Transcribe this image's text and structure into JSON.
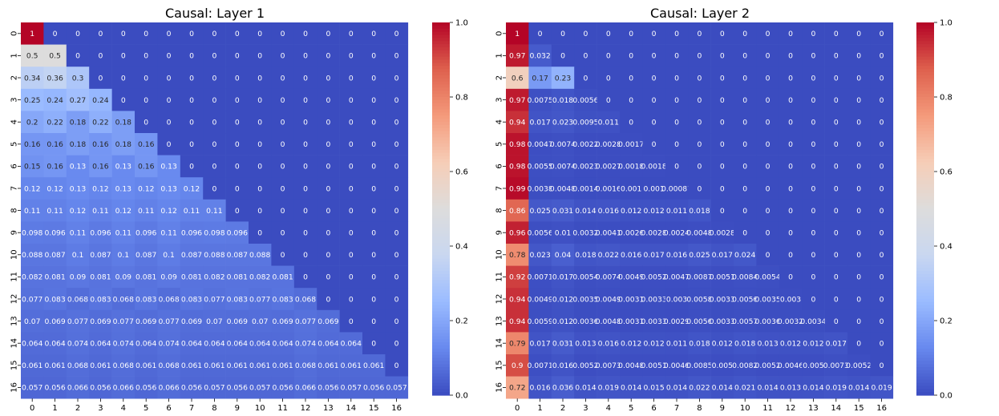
{
  "figure": {
    "colormap": "coolwarm",
    "colormap_stops": [
      "#3b4cc0",
      "#6788ee",
      "#9abbff",
      "#c9d7f0",
      "#dddcdc",
      "#f6cdb7",
      "#f49a7b",
      "#de604d",
      "#b40426"
    ],
    "colorbar_ticks": [
      "0.0",
      "0.2",
      "0.4",
      "0.6",
      "0.8",
      "1.0"
    ]
  },
  "chart_data": [
    {
      "type": "heatmap",
      "title": "Causal: Layer 1",
      "xlabel": "",
      "ylabel": "",
      "x_tick_labels": [
        "0",
        "1",
        "2",
        "3",
        "4",
        "5",
        "6",
        "7",
        "8",
        "9",
        "10",
        "11",
        "12",
        "13",
        "14",
        "15",
        "16"
      ],
      "y_tick_labels": [
        "0",
        "1",
        "2",
        "3",
        "4",
        "5",
        "6",
        "7",
        "8",
        "9",
        "10",
        "11",
        "12",
        "13",
        "14",
        "15",
        "16"
      ],
      "vmin": 0.0,
      "vmax": 1.0,
      "cells": [
        [
          "1",
          "0",
          "0",
          "0",
          "0",
          "0",
          "0",
          "0",
          "0",
          "0",
          "0",
          "0",
          "0",
          "0",
          "0",
          "0",
          "0"
        ],
        [
          "0.5",
          "0.5",
          "0",
          "0",
          "0",
          "0",
          "0",
          "0",
          "0",
          "0",
          "0",
          "0",
          "0",
          "0",
          "0",
          "0",
          "0"
        ],
        [
          "0.34",
          "0.36",
          "0.3",
          "0",
          "0",
          "0",
          "0",
          "0",
          "0",
          "0",
          "0",
          "0",
          "0",
          "0",
          "0",
          "0",
          "0"
        ],
        [
          "0.25",
          "0.24",
          "0.27",
          "0.24",
          "0",
          "0",
          "0",
          "0",
          "0",
          "0",
          "0",
          "0",
          "0",
          "0",
          "0",
          "0",
          "0"
        ],
        [
          "0.2",
          "0.22",
          "0.18",
          "0.22",
          "0.18",
          "0",
          "0",
          "0",
          "0",
          "0",
          "0",
          "0",
          "0",
          "0",
          "0",
          "0",
          "0"
        ],
        [
          "0.16",
          "0.16",
          "0.18",
          "0.16",
          "0.18",
          "0.16",
          "0",
          "0",
          "0",
          "0",
          "0",
          "0",
          "0",
          "0",
          "0",
          "0",
          "0"
        ],
        [
          "0.15",
          "0.16",
          "0.13",
          "0.16",
          "0.13",
          "0.16",
          "0.13",
          "0",
          "0",
          "0",
          "0",
          "0",
          "0",
          "0",
          "0",
          "0",
          "0"
        ],
        [
          "0.12",
          "0.12",
          "0.13",
          "0.12",
          "0.13",
          "0.12",
          "0.13",
          "0.12",
          "0",
          "0",
          "0",
          "0",
          "0",
          "0",
          "0",
          "0",
          "0"
        ],
        [
          "0.11",
          "0.11",
          "0.12",
          "0.11",
          "0.12",
          "0.11",
          "0.12",
          "0.11",
          "0.11",
          "0",
          "0",
          "0",
          "0",
          "0",
          "0",
          "0",
          "0"
        ],
        [
          "0.098",
          "0.096",
          "0.11",
          "0.096",
          "0.11",
          "0.096",
          "0.11",
          "0.096",
          "0.098",
          "0.096",
          "0",
          "0",
          "0",
          "0",
          "0",
          "0",
          "0"
        ],
        [
          "0.088",
          "0.087",
          "0.1",
          "0.087",
          "0.1",
          "0.087",
          "0.1",
          "0.087",
          "0.088",
          "0.087",
          "0.088",
          "0",
          "0",
          "0",
          "0",
          "0",
          "0"
        ],
        [
          "0.082",
          "0.081",
          "0.09",
          "0.081",
          "0.09",
          "0.081",
          "0.09",
          "0.081",
          "0.082",
          "0.081",
          "0.082",
          "0.081",
          "0",
          "0",
          "0",
          "0",
          "0"
        ],
        [
          "0.077",
          "0.083",
          "0.068",
          "0.083",
          "0.068",
          "0.083",
          "0.068",
          "0.083",
          "0.077",
          "0.083",
          "0.077",
          "0.083",
          "0.068",
          "0",
          "0",
          "0",
          "0"
        ],
        [
          "0.07",
          "0.069",
          "0.077",
          "0.069",
          "0.077",
          "0.069",
          "0.077",
          "0.069",
          "0.07",
          "0.069",
          "0.07",
          "0.069",
          "0.077",
          "0.069",
          "0",
          "0",
          "0"
        ],
        [
          "0.064",
          "0.064",
          "0.074",
          "0.064",
          "0.074",
          "0.064",
          "0.074",
          "0.064",
          "0.064",
          "0.064",
          "0.064",
          "0.064",
          "0.074",
          "0.064",
          "0.064",
          "0",
          "0"
        ],
        [
          "0.061",
          "0.061",
          "0.068",
          "0.061",
          "0.068",
          "0.061",
          "0.068",
          "0.061",
          "0.061",
          "0.061",
          "0.061",
          "0.061",
          "0.068",
          "0.061",
          "0.061",
          "0.061",
          "0"
        ],
        [
          "0.057",
          "0.056",
          "0.066",
          "0.056",
          "0.066",
          "0.056",
          "0.066",
          "0.056",
          "0.057",
          "0.056",
          "0.057",
          "0.056",
          "0.066",
          "0.056",
          "0.057",
          "0.056",
          "0.057"
        ]
      ]
    },
    {
      "type": "heatmap",
      "title": "Causal: Layer 2",
      "xlabel": "",
      "ylabel": "",
      "x_tick_labels": [
        "0",
        "1",
        "2",
        "3",
        "4",
        "5",
        "6",
        "7",
        "8",
        "9",
        "10",
        "11",
        "12",
        "13",
        "14",
        "15",
        "16"
      ],
      "y_tick_labels": [
        "0",
        "1",
        "2",
        "3",
        "4",
        "5",
        "6",
        "7",
        "8",
        "9",
        "10",
        "11",
        "12",
        "13",
        "14",
        "15",
        "16"
      ],
      "vmin": 0.0,
      "vmax": 1.0,
      "cells": [
        [
          "1",
          "0",
          "0",
          "0",
          "0",
          "0",
          "0",
          "0",
          "0",
          "0",
          "0",
          "0",
          "0",
          "0",
          "0",
          "0",
          "0"
        ],
        [
          "0.97",
          "0.032",
          "0",
          "0",
          "0",
          "0",
          "0",
          "0",
          "0",
          "0",
          "0",
          "0",
          "0",
          "0",
          "0",
          "0",
          "0"
        ],
        [
          "0.6",
          "0.17",
          "0.23",
          "0",
          "0",
          "0",
          "0",
          "0",
          "0",
          "0",
          "0",
          "0",
          "0",
          "0",
          "0",
          "0",
          "0"
        ],
        [
          "0.97",
          "0.0075",
          "0.018",
          "0.0056",
          "0",
          "0",
          "0",
          "0",
          "0",
          "0",
          "0",
          "0",
          "0",
          "0",
          "0",
          "0",
          "0"
        ],
        [
          "0.94",
          "0.017",
          "0.023",
          "0.0095",
          "0.011",
          "0",
          "0",
          "0",
          "0",
          "0",
          "0",
          "0",
          "0",
          "0",
          "0",
          "0",
          "0"
        ],
        [
          "0.98",
          "0.0047",
          "0.0074",
          "0.0022",
          "0.0028",
          "0.0017",
          "0",
          "0",
          "0",
          "0",
          "0",
          "0",
          "0",
          "0",
          "0",
          "0",
          "0"
        ],
        [
          "0.98",
          "0.0055",
          "0.0074",
          "0.0023",
          "0.0027",
          "0.0018",
          "0.0018",
          "0",
          "0",
          "0",
          "0",
          "0",
          "0",
          "0",
          "0",
          "0",
          "0"
        ],
        [
          "0.99",
          "0.0038",
          "0.0048",
          "0.0014",
          "0.0016",
          "0.001",
          "0.001",
          "0.00087",
          "0",
          "0",
          "0",
          "0",
          "0",
          "0",
          "0",
          "0",
          "0"
        ],
        [
          "0.86",
          "0.025",
          "0.031",
          "0.014",
          "0.016",
          "0.012",
          "0.012",
          "0.011",
          "0.018",
          "0",
          "0",
          "0",
          "0",
          "0",
          "0",
          "0",
          "0"
        ],
        [
          "0.96",
          "0.0056",
          "0.01",
          "0.0032",
          "0.0041",
          "0.0026",
          "0.0028",
          "0.0024",
          "0.0048",
          "0.0028",
          "0",
          "0",
          "0",
          "0",
          "0",
          "0",
          "0"
        ],
        [
          "0.78",
          "0.023",
          "0.04",
          "0.018",
          "0.022",
          "0.016",
          "0.017",
          "0.016",
          "0.025",
          "0.017",
          "0.024",
          "0",
          "0",
          "0",
          "0",
          "0",
          "0"
        ],
        [
          "0.92",
          "0.0071",
          "0.017",
          "0.0054",
          "0.0074",
          "0.0049",
          "0.0052",
          "0.0047",
          "0.0087",
          "0.0051",
          "0.0084",
          "0.0054",
          "0",
          "0",
          "0",
          "0",
          "0"
        ],
        [
          "0.94",
          "0.0049",
          "0.012",
          "0.0035",
          "0.0049",
          "0.0031",
          "0.0033",
          "0.003",
          "0.0058",
          "0.0033",
          "0.0056",
          "0.0035",
          "0.003",
          "0",
          "0",
          "0",
          "0"
        ],
        [
          "0.94",
          "0.0059",
          "0.012",
          "0.0036",
          "0.0048",
          "0.0031",
          "0.0033",
          "0.0029",
          "0.0056",
          "0.0033",
          "0.0057",
          "0.0036",
          "0.0032",
          "0.0034",
          "0",
          "0",
          "0"
        ],
        [
          "0.79",
          "0.017",
          "0.031",
          "0.013",
          "0.016",
          "0.012",
          "0.012",
          "0.011",
          "0.018",
          "0.012",
          "0.018",
          "0.013",
          "0.012",
          "0.012",
          "0.017",
          "0",
          "0"
        ],
        [
          "0.9",
          "0.0071",
          "0.016",
          "0.0052",
          "0.0073",
          "0.0048",
          "0.0051",
          "0.0046",
          "0.0085",
          "0.005",
          "0.0082",
          "0.0052",
          "0.0046",
          "0.005",
          "0.0073",
          "0.0052",
          "0"
        ],
        [
          "0.72",
          "0.016",
          "0.036",
          "0.014",
          "0.019",
          "0.014",
          "0.015",
          "0.014",
          "0.022",
          "0.014",
          "0.021",
          "0.014",
          "0.013",
          "0.014",
          "0.019",
          "0.014",
          "0.019"
        ]
      ]
    }
  ]
}
